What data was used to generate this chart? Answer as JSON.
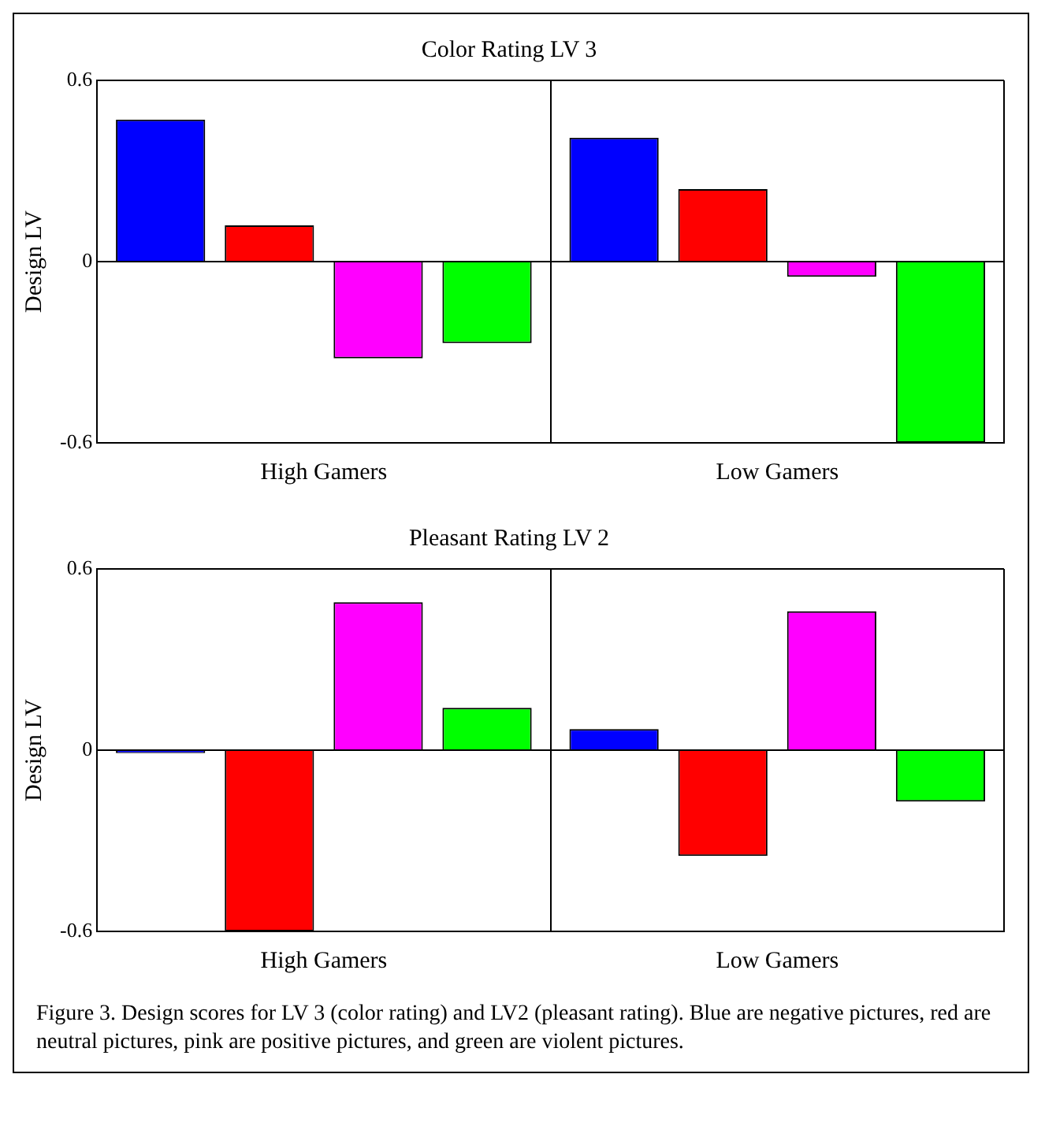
{
  "chart_data": [
    {
      "type": "bar",
      "title": "Color Rating LV 3",
      "ylabel": "Design LV",
      "categories": [
        "High Gamers",
        "Low Gamers"
      ],
      "series": [
        {
          "color": "#0000ff",
          "values": [
            0.47,
            0.41
          ]
        },
        {
          "color": "#ff0000",
          "values": [
            0.12,
            0.24
          ]
        },
        {
          "color": "#ff00ff",
          "values": [
            -0.32,
            -0.05
          ]
        },
        {
          "color": "#00ff00",
          "values": [
            -0.27,
            -0.6
          ]
        }
      ],
      "ylim": [
        -0.6,
        0.6
      ],
      "yticks": [
        -0.6,
        0,
        0.6
      ],
      "grid": true
    },
    {
      "type": "bar",
      "title": "Pleasant Rating LV 2",
      "ylabel": "Design LV",
      "categories": [
        "High Gamers",
        "Low Gamers"
      ],
      "series": [
        {
          "color": "#0000ff",
          "values": [
            -0.01,
            0.07
          ]
        },
        {
          "color": "#ff0000",
          "values": [
            -0.6,
            -0.35
          ]
        },
        {
          "color": "#ff00ff",
          "values": [
            0.49,
            0.46
          ]
        },
        {
          "color": "#00ff00",
          "values": [
            0.14,
            -0.17
          ]
        }
      ],
      "ylim": [
        -0.6,
        0.6
      ],
      "yticks": [
        -0.6,
        0,
        0.6
      ],
      "grid": true,
      "annotations": [
        "Figure 3. Design scores for LV 3 (color rating) and LV2 (pleasant rating). Blue are negative pictures, red are neutral pictures, pink are positive pictures, and green are violent pictures."
      ]
    }
  ]
}
